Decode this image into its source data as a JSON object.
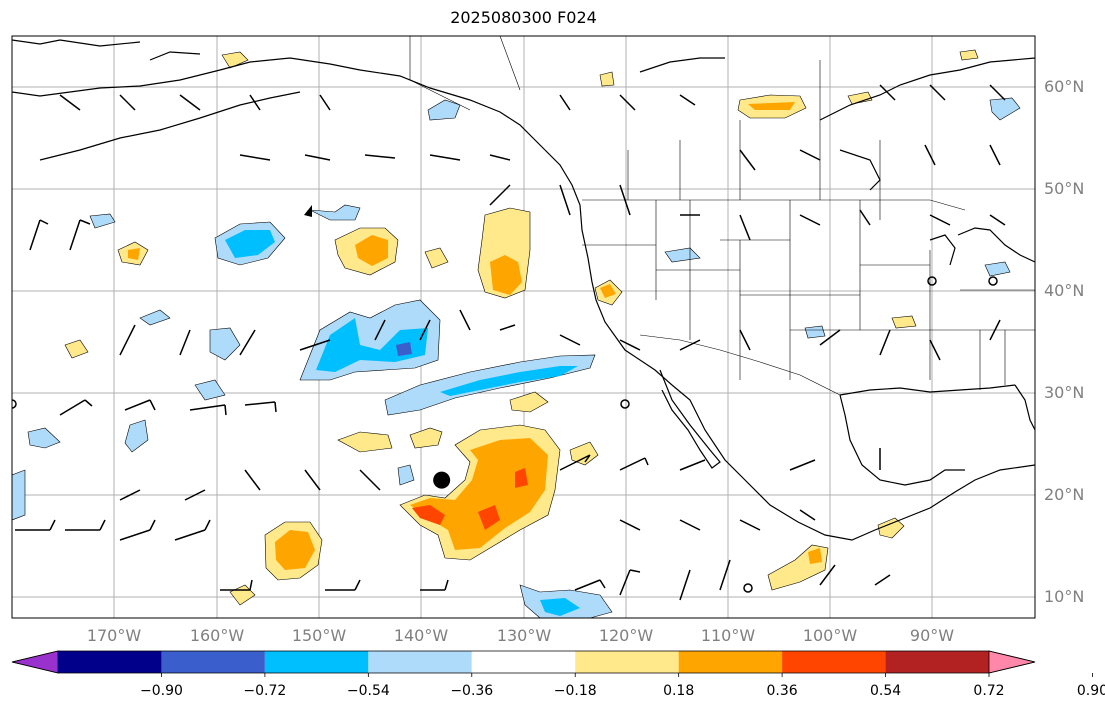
{
  "title": "2025080300 F024",
  "map": {
    "projection": "PlateCarree",
    "lon_range": [
      -180,
      -80
    ],
    "lat_range": [
      8,
      65
    ],
    "gridlines": true,
    "features": [
      "coastlines",
      "country borders",
      "US state borders"
    ],
    "colors": {
      "grid": "#b0b0b0",
      "land_outline": "#000000",
      "frame": "#000000"
    }
  },
  "lat_labels": [
    "60°N",
    "50°N",
    "40°N",
    "30°N",
    "20°N",
    "10°N"
  ],
  "lon_labels": [
    "170°W",
    "160°W",
    "150°W",
    "140°W",
    "130°W",
    "120°W",
    "110°W",
    "100°W",
    "90°W"
  ],
  "colorbar": {
    "ticks": [
      "−0.90",
      "−0.72",
      "−0.54",
      "−0.36",
      "−0.18",
      "0.18",
      "0.36",
      "0.54",
      "0.72",
      "0.90"
    ],
    "colors": [
      "#9932cc",
      "#00008b",
      "#3a5fcd",
      "#00bfff",
      "#afdbfa",
      "#ffffff",
      "#ffe98a",
      "#ffa500",
      "#ff4500",
      "#b22222",
      "#ff88aa"
    ],
    "extend": "both"
  },
  "marker": {
    "type": "filled-circle",
    "color": "#000000",
    "lon": -138,
    "lat": 21.5
  },
  "wind_barbs": "present across the domain (black)"
}
